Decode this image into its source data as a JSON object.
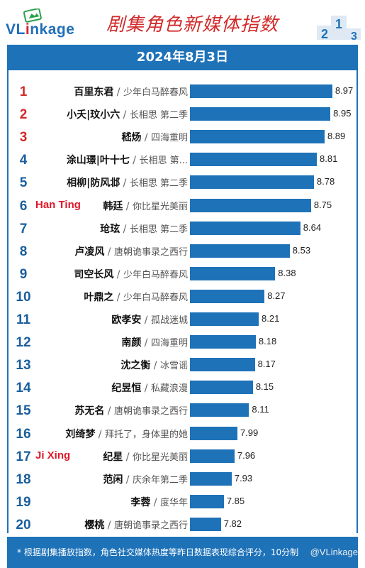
{
  "header": {
    "logo_text_pre": "VL",
    "logo_text_accent": "i",
    "logo_text_post": "nkage",
    "title": "剧集角色新媒体指数",
    "date": "2024年8月3日"
  },
  "annotations": [
    {
      "text": "Han Ting",
      "rank": 6
    },
    {
      "text": "Ji Xing",
      "rank": 17
    }
  ],
  "footer": {
    "note": "* 根据剧集播放指数，角色社交媒体热度等昨日数据表现综合评分，10分制",
    "watermark": "@VLinkage"
  },
  "colors": {
    "bar": "#1e72b8",
    "top_rank": "#d22a2a",
    "rank": "#1a5f9c",
    "annotation": "#e0182a"
  },
  "chart_data": {
    "type": "bar",
    "orientation": "horizontal",
    "xlim": [
      7.5,
      9.0
    ],
    "categories": [
      "百里东君",
      "小夭|玟小六",
      "嵇炀",
      "涂山璟|叶十七",
      "相柳|防风邶",
      "韩廷",
      "玱玹",
      "卢凌风",
      "司空长风",
      "叶鼎之",
      "欧孝安",
      "南颜",
      "沈之衡",
      "纪昱恒",
      "苏无名",
      "刘绮梦",
      "纪星",
      "范闲",
      "李蓉",
      "樱桃"
    ],
    "rows": [
      {
        "rank": "1",
        "name": "百里东君",
        "drama": "少年白马醉春风",
        "value": 8.97
      },
      {
        "rank": "2",
        "name": "小夭|玟小六",
        "drama": "长相思 第二季",
        "value": 8.95
      },
      {
        "rank": "3",
        "name": "嵇炀",
        "drama": "四海重明",
        "value": 8.89
      },
      {
        "rank": "4",
        "name": "涂山璟|叶十七",
        "drama": "长相思 第...",
        "value": 8.81
      },
      {
        "rank": "5",
        "name": "相柳|防风邶",
        "drama": "长相思 第二季",
        "value": 8.78
      },
      {
        "rank": "6",
        "name": "韩廷",
        "drama": "你比星光美丽",
        "value": 8.75
      },
      {
        "rank": "7",
        "name": "玱玹",
        "drama": "长相思 第二季",
        "value": 8.64
      },
      {
        "rank": "8",
        "name": "卢凌风",
        "drama": "唐朝诡事录之西行",
        "value": 8.53
      },
      {
        "rank": "9",
        "name": "司空长风",
        "drama": "少年白马醉春风",
        "value": 8.38
      },
      {
        "rank": "10",
        "name": "叶鼎之",
        "drama": "少年白马醉春风",
        "value": 8.27
      },
      {
        "rank": "11",
        "name": "欧孝安",
        "drama": "孤战迷城",
        "value": 8.21
      },
      {
        "rank": "12",
        "name": "南颜",
        "drama": "四海重明",
        "value": 8.18
      },
      {
        "rank": "13",
        "name": "沈之衡",
        "drama": "冰雪谣",
        "value": 8.17
      },
      {
        "rank": "14",
        "name": "纪昱恒",
        "drama": "私藏浪漫",
        "value": 8.15
      },
      {
        "rank": "15",
        "name": "苏无名",
        "drama": "唐朝诡事录之西行",
        "value": 8.11
      },
      {
        "rank": "16",
        "name": "刘绮梦",
        "drama": "拜托了，身体里的她",
        "value": 7.99
      },
      {
        "rank": "17",
        "name": "纪星",
        "drama": "你比星光美丽",
        "value": 7.96
      },
      {
        "rank": "18",
        "name": "范闲",
        "drama": "庆余年第二季",
        "value": 7.93
      },
      {
        "rank": "19",
        "name": "李蓉",
        "drama": "度华年",
        "value": 7.85
      },
      {
        "rank": "20",
        "name": "樱桃",
        "drama": "唐朝诡事录之西行",
        "value": 7.82
      }
    ]
  }
}
